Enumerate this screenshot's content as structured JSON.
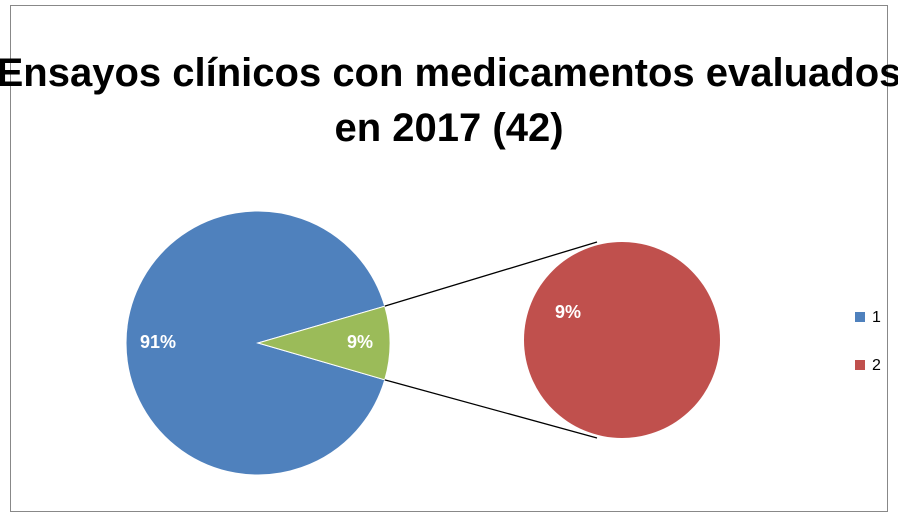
{
  "chart_data": {
    "type": "pie_of_pie",
    "title": "Ensayos clínicos con medicamentos evaluados en 2017 (42)",
    "categories": [
      "1",
      "2"
    ],
    "values": [
      91,
      9
    ],
    "value_labels": [
      "91%",
      "9%"
    ],
    "colors": [
      "#4f81bd",
      "#c0504d"
    ],
    "other_value": 9,
    "other_value_label": "9%",
    "other_color": "#9bbb59",
    "legend": "right"
  }
}
